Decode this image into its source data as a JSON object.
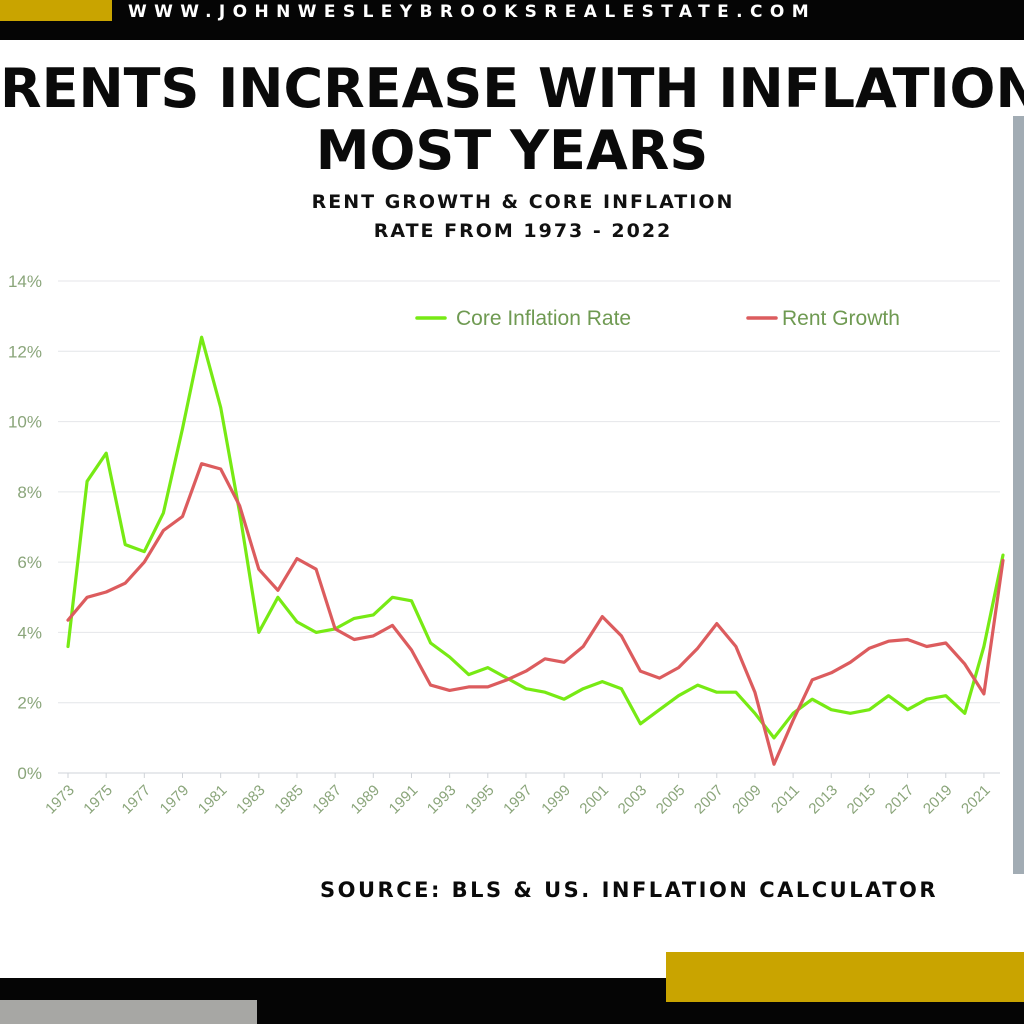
{
  "header": {
    "website": "WWW.JOHNWESLEYBROOKSREALESTATE.COM"
  },
  "title": {
    "line1": "RENTS INCREASE WITH INFLATION",
    "line2": "MOST YEARS"
  },
  "subtitle": {
    "line1": "RENT GROWTH & CORE INFLATION",
    "line2": "RATE FROM 1973 - 2022"
  },
  "source": "SOURCE: BLS & US. INFLATION CALCULATOR",
  "colors": {
    "brand_gold": "#c9a400",
    "bar_black": "#050505",
    "rule_gray": "#a2acb4"
  },
  "chart_data": {
    "type": "line",
    "x": [
      1973,
      1974,
      1975,
      1976,
      1977,
      1978,
      1979,
      1980,
      1981,
      1982,
      1983,
      1984,
      1985,
      1986,
      1987,
      1988,
      1989,
      1990,
      1991,
      1992,
      1993,
      1994,
      1995,
      1996,
      1997,
      1998,
      1999,
      2000,
      2001,
      2002,
      2003,
      2004,
      2005,
      2006,
      2007,
      2008,
      2009,
      2010,
      2011,
      2012,
      2013,
      2014,
      2015,
      2016,
      2017,
      2018,
      2019,
      2020,
      2021,
      2022
    ],
    "x_tick_labels": [
      "1973",
      "1975",
      "1977",
      "1979",
      "1981",
      "1983",
      "1985",
      "1987",
      "1989",
      "1991",
      "1993",
      "1995",
      "1997",
      "1999",
      "2001",
      "2003",
      "2005",
      "2007",
      "2009",
      "2011",
      "2013",
      "2015",
      "2017",
      "2019",
      "2021"
    ],
    "y_tick_labels": [
      "0%",
      "2%",
      "4%",
      "6%",
      "8%",
      "10%",
      "12%",
      "14%"
    ],
    "ylim": [
      0,
      14
    ],
    "grid": true,
    "legend_position": "top",
    "series": [
      {
        "name": "Core Inflation Rate",
        "color": "#77ea14",
        "values": [
          3.6,
          8.3,
          9.1,
          6.5,
          6.3,
          7.4,
          9.8,
          12.4,
          10.4,
          7.4,
          4.0,
          5.0,
          4.3,
          4.0,
          4.1,
          4.4,
          4.5,
          5.0,
          4.9,
          3.7,
          3.3,
          2.8,
          3.0,
          2.7,
          2.4,
          2.3,
          2.1,
          2.4,
          2.6,
          2.4,
          1.4,
          1.8,
          2.2,
          2.5,
          2.3,
          2.3,
          1.7,
          1.0,
          1.7,
          2.1,
          1.8,
          1.7,
          1.8,
          2.2,
          1.8,
          2.1,
          2.2,
          1.7,
          3.6,
          6.2
        ]
      },
      {
        "name": "Rent Growth",
        "color": "#dc5c5e",
        "values": [
          4.35,
          5.0,
          5.15,
          5.4,
          6.0,
          6.9,
          7.3,
          8.8,
          8.65,
          7.6,
          5.8,
          5.2,
          6.1,
          5.8,
          4.1,
          3.8,
          3.9,
          4.2,
          3.5,
          2.5,
          2.35,
          2.45,
          2.45,
          2.65,
          2.9,
          3.25,
          3.15,
          3.6,
          4.45,
          3.9,
          2.9,
          2.7,
          3.0,
          3.55,
          4.25,
          3.6,
          2.3,
          0.25,
          1.5,
          2.65,
          2.85,
          3.15,
          3.55,
          3.75,
          3.8,
          3.6,
          3.7,
          3.1,
          2.25,
          6.05
        ]
      }
    ]
  }
}
